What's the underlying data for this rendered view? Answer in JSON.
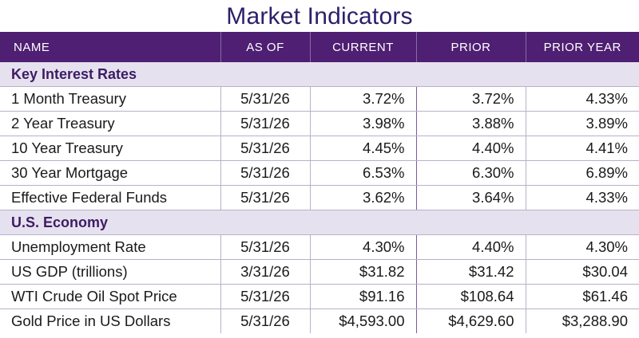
{
  "title": "Market Indicators",
  "columns": [
    "NAME",
    "AS OF",
    "CURRENT",
    "PRIOR",
    "PRIOR YEAR"
  ],
  "sections": [
    {
      "heading": "Key Interest Rates",
      "rows": [
        {
          "name": "1 Month Treasury",
          "as_of": "5/31/26",
          "current": "3.72%",
          "prior": "3.72%",
          "prior_year": "4.33%"
        },
        {
          "name": "2 Year Treasury",
          "as_of": "5/31/26",
          "current": "3.98%",
          "prior": "3.88%",
          "prior_year": "3.89%"
        },
        {
          "name": "10 Year Treasury",
          "as_of": "5/31/26",
          "current": "4.45%",
          "prior": "4.40%",
          "prior_year": "4.41%"
        },
        {
          "name": "30 Year Mortgage",
          "as_of": "5/31/26",
          "current": "6.53%",
          "prior": "6.30%",
          "prior_year": "6.89%"
        },
        {
          "name": "Effective Federal Funds",
          "as_of": "5/31/26",
          "current": "3.62%",
          "prior": "3.64%",
          "prior_year": "4.33%"
        }
      ]
    },
    {
      "heading": "U.S. Economy",
      "rows": [
        {
          "name": "Unemployment Rate",
          "as_of": "5/31/26",
          "current": "4.30%",
          "prior": "4.40%",
          "prior_year": "4.30%"
        },
        {
          "name": "US GDP (trillions)",
          "as_of": "3/31/26",
          "current": "$31.82",
          "prior": "$31.42",
          "prior_year": "$30.04"
        },
        {
          "name": "WTI Crude Oil Spot Price",
          "as_of": "5/31/26",
          "current": "$91.16",
          "prior": "$108.64",
          "prior_year": "$61.46"
        },
        {
          "name": "Gold Price in US Dollars",
          "as_of": "5/31/26",
          "current": "$4,593.00",
          "prior": "$4,629.60",
          "prior_year": "$3,288.90"
        }
      ]
    }
  ],
  "colors": {
    "header_bg": "#4e1f72",
    "title_text": "#2b1f6b",
    "section_bg": "#e6e1ef",
    "section_text": "#3d1c63"
  }
}
